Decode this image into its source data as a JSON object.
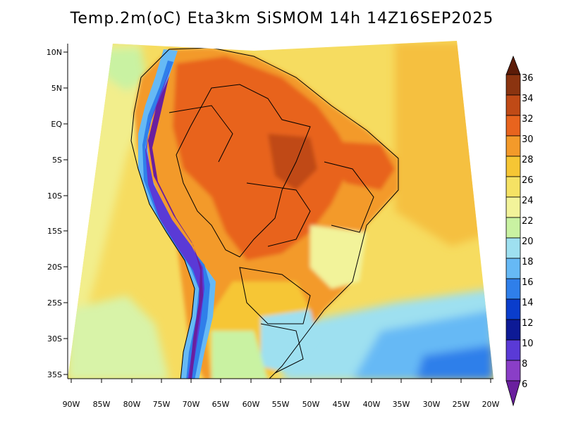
{
  "title": "Temp.2m(oC) Eta3km SiSMOM 14h 14Z16SEP2025",
  "map": {
    "variable": "2m temperature",
    "units": "oC",
    "lon_range": [
      -90,
      -20
    ],
    "lat_range": [
      -37,
      12
    ],
    "lat_labels": [
      "10N",
      "5N",
      "EQ",
      "5S",
      "10S",
      "15S",
      "20S",
      "25S",
      "30S",
      "35S"
    ],
    "lon_labels": [
      "90W",
      "85W",
      "80W",
      "75W",
      "70W",
      "65W",
      "60W",
      "55W",
      "50W",
      "45W",
      "40W",
      "35W",
      "30W",
      "25W",
      "20W"
    ]
  },
  "colorbar": {
    "labels": [
      "36",
      "34",
      "32",
      "30",
      "28",
      "26",
      "24",
      "22",
      "20",
      "18",
      "16",
      "14",
      "12",
      "10",
      "8",
      "6"
    ],
    "colors": [
      "#5c1c08",
      "#8b3410",
      "#c04a16",
      "#e8641e",
      "#f39a2a",
      "#f6c634",
      "#f5e264",
      "#f2f39a",
      "#c9f2a2",
      "#9ee0f0",
      "#66b9f5",
      "#2f7fea",
      "#0a3dcc",
      "#0d1a96",
      "#5a3ad6",
      "#8a3ec7",
      "#6a1f9e"
    ]
  },
  "colors": {
    "background": "#ffffff",
    "ocean_base": "#f6dc60",
    "land_hot": "#ef7c2c",
    "andes_cold": "#5a2a9e",
    "border": "#000000"
  }
}
